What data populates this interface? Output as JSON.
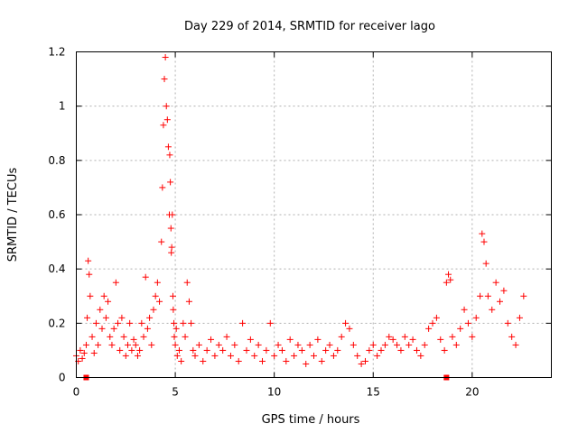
{
  "chart_data": {
    "type": "scatter",
    "title": "Day 229 of 2014, SRMTID for receiver lago",
    "xlabel": "GPS time / hours",
    "ylabel": "SRMTID / TECUs",
    "xlim": [
      0,
      24
    ],
    "ylim": [
      0,
      1.2
    ],
    "xticks": [
      0,
      5,
      10,
      15,
      20
    ],
    "xtick_labels": [
      "0",
      "5",
      "10",
      "15",
      "20"
    ],
    "yticks": [
      0,
      0.2,
      0.4,
      0.6,
      0.8,
      1.0,
      1.2
    ],
    "ytick_labels": [
      "0",
      "0.2",
      "0.4",
      "0.6",
      "0.8",
      "1",
      "1.2"
    ],
    "grid": true,
    "marker": "+",
    "color": "#ff0000",
    "series": [
      {
        "name": "SRMTID",
        "x": [
          0.0,
          0.1,
          0.2,
          0.3,
          0.4,
          0.5,
          0.55,
          0.6,
          0.65,
          0.7,
          0.8,
          0.9,
          1.0,
          1.1,
          1.2,
          1.3,
          1.4,
          1.5,
          1.6,
          1.7,
          1.8,
          1.9,
          2.0,
          2.1,
          2.2,
          2.3,
          2.4,
          2.5,
          2.6,
          2.7,
          2.8,
          2.9,
          3.0,
          3.1,
          3.2,
          3.3,
          3.4,
          3.5,
          3.6,
          3.7,
          3.8,
          3.9,
          4.0,
          4.1,
          4.2,
          4.3,
          4.35,
          4.4,
          4.45,
          4.5,
          4.55,
          4.6,
          4.65,
          4.7,
          4.72,
          4.75,
          4.78,
          4.8,
          4.82,
          4.85,
          4.88,
          4.9,
          4.93,
          4.95,
          5.0,
          5.05,
          5.1,
          5.2,
          5.3,
          5.4,
          5.5,
          5.6,
          5.7,
          5.8,
          5.9,
          6.0,
          6.2,
          6.4,
          6.6,
          6.8,
          7.0,
          7.2,
          7.4,
          7.6,
          7.8,
          8.0,
          8.2,
          8.4,
          8.6,
          8.8,
          9.0,
          9.2,
          9.4,
          9.6,
          9.8,
          10.0,
          10.2,
          10.4,
          10.6,
          10.8,
          11.0,
          11.2,
          11.4,
          11.6,
          11.8,
          12.0,
          12.2,
          12.4,
          12.6,
          12.8,
          13.0,
          13.2,
          13.4,
          13.6,
          13.8,
          14.0,
          14.2,
          14.4,
          14.6,
          14.8,
          15.0,
          15.2,
          15.4,
          15.6,
          15.8,
          16.0,
          16.2,
          16.4,
          16.6,
          16.8,
          17.0,
          17.2,
          17.4,
          17.6,
          17.8,
          18.0,
          18.2,
          18.4,
          18.6,
          18.7,
          18.8,
          18.9,
          19.0,
          19.2,
          19.4,
          19.6,
          19.8,
          20.0,
          20.2,
          20.4,
          20.5,
          20.6,
          20.7,
          20.8,
          21.0,
          21.2,
          21.4,
          21.6,
          21.8,
          22.0,
          22.2,
          22.4,
          22.6
        ],
        "y": [
          0.08,
          0.06,
          0.1,
          0.07,
          0.09,
          0.12,
          0.22,
          0.43,
          0.38,
          0.3,
          0.15,
          0.09,
          0.2,
          0.12,
          0.25,
          0.18,
          0.3,
          0.22,
          0.28,
          0.15,
          0.12,
          0.18,
          0.35,
          0.2,
          0.1,
          0.22,
          0.15,
          0.08,
          0.12,
          0.2,
          0.1,
          0.14,
          0.12,
          0.08,
          0.1,
          0.2,
          0.15,
          0.37,
          0.18,
          0.22,
          0.12,
          0.25,
          0.3,
          0.35,
          0.28,
          0.5,
          0.7,
          0.93,
          1.1,
          1.18,
          1.0,
          0.95,
          0.85,
          0.6,
          0.82,
          0.72,
          0.55,
          0.46,
          0.48,
          0.6,
          0.3,
          0.25,
          0.2,
          0.15,
          0.12,
          0.18,
          0.08,
          0.1,
          0.06,
          0.2,
          0.15,
          0.35,
          0.28,
          0.2,
          0.1,
          0.08,
          0.12,
          0.06,
          0.1,
          0.14,
          0.08,
          0.12,
          0.1,
          0.15,
          0.08,
          0.12,
          0.06,
          0.2,
          0.1,
          0.14,
          0.08,
          0.12,
          0.06,
          0.1,
          0.2,
          0.08,
          0.12,
          0.1,
          0.06,
          0.14,
          0.08,
          0.12,
          0.1,
          0.05,
          0.12,
          0.08,
          0.14,
          0.06,
          0.1,
          0.12,
          0.08,
          0.1,
          0.15,
          0.2,
          0.18,
          0.12,
          0.08,
          0.05,
          0.06,
          0.1,
          0.12,
          0.08,
          0.1,
          0.12,
          0.15,
          0.14,
          0.12,
          0.1,
          0.15,
          0.12,
          0.14,
          0.1,
          0.08,
          0.12,
          0.18,
          0.2,
          0.22,
          0.14,
          0.1,
          0.35,
          0.38,
          0.36,
          0.15,
          0.12,
          0.18,
          0.25,
          0.2,
          0.15,
          0.22,
          0.3,
          0.53,
          0.5,
          0.42,
          0.3,
          0.25,
          0.35,
          0.28,
          0.32,
          0.2,
          0.15,
          0.12,
          0.22,
          0.3
        ]
      }
    ],
    "markers_on_axis": [
      0.5,
      18.7
    ]
  }
}
